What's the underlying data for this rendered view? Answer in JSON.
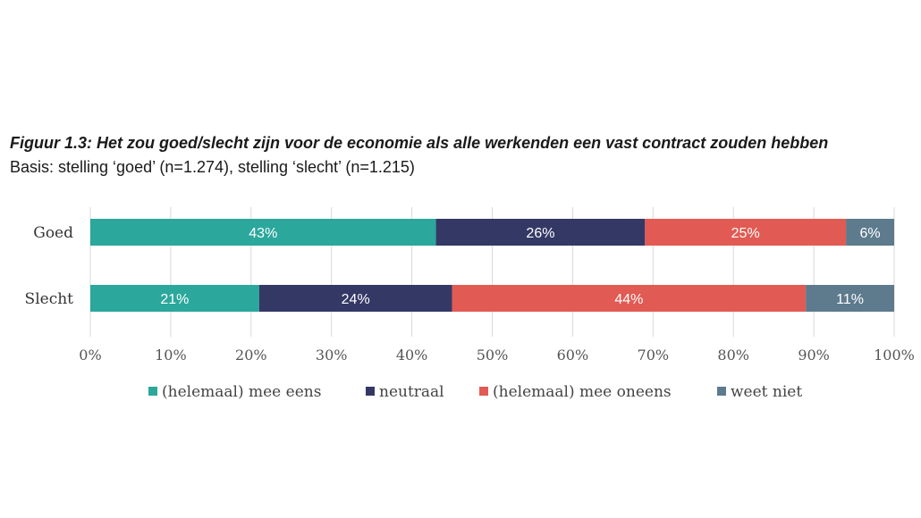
{
  "header": {
    "title": "Figuur 1.3: Het zou goed/slecht zijn voor de economie als alle werkenden een vast contract zouden hebben",
    "subtitle": "Basis: stelling ‘goed’ (n=1.274), stelling ‘slecht’ (n=1.215)"
  },
  "chart_data": {
    "type": "bar",
    "orientation": "horizontal",
    "stacked": true,
    "categories": [
      "Goed",
      "Slecht"
    ],
    "series": [
      {
        "name": "(helemaal) mee eens",
        "color": "#2ba79c",
        "values": [
          43,
          21
        ],
        "labels": [
          "43%",
          "21%"
        ]
      },
      {
        "name": "neutraal",
        "color": "#343865",
        "values": [
          26,
          24
        ],
        "labels": [
          "26%",
          "24%"
        ]
      },
      {
        "name": "(helemaal) mee oneens",
        "color": "#e15a53",
        "values": [
          25,
          44
        ],
        "labels": [
          "25%",
          "44%"
        ]
      },
      {
        "name": "weet niet",
        "color": "#5e7b8e",
        "values": [
          6,
          11
        ],
        "labels": [
          "6%",
          "11%"
        ]
      }
    ],
    "xlim": [
      0,
      100
    ],
    "xticks": [
      "0%",
      "10%",
      "20%",
      "30%",
      "40%",
      "50%",
      "60%",
      "70%",
      "80%",
      "90%",
      "100%"
    ],
    "grid": "vertical",
    "legend": "bottom"
  }
}
